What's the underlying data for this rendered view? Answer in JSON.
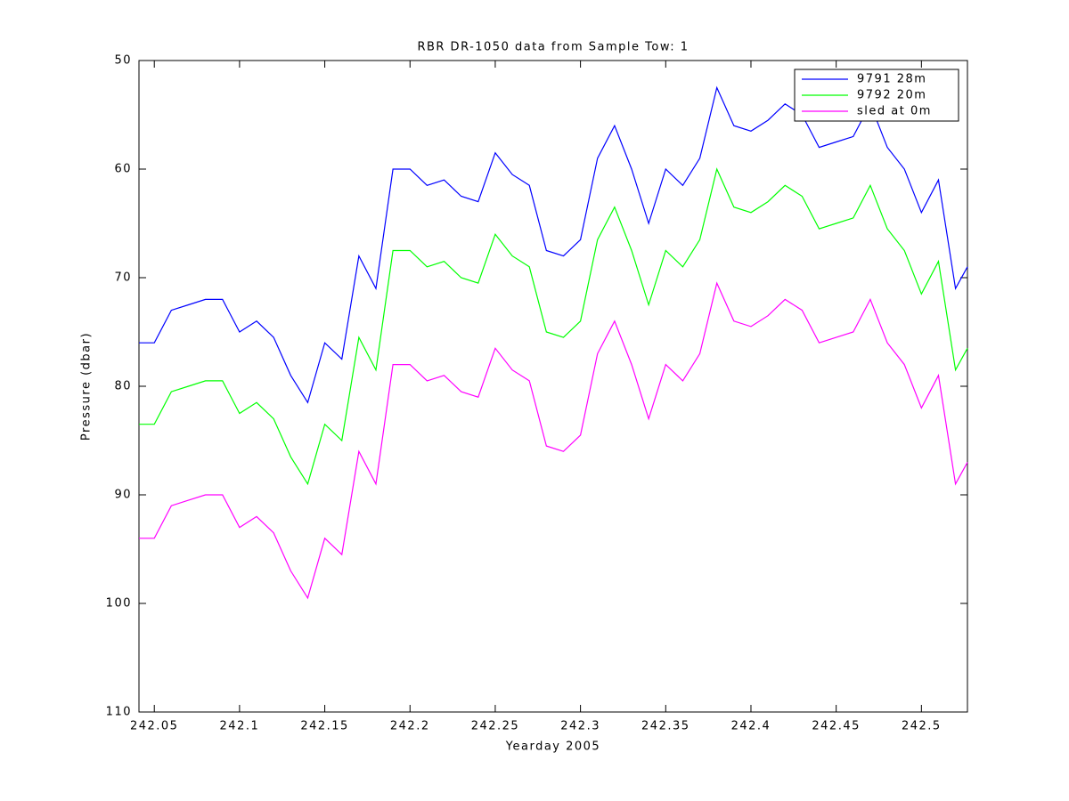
{
  "chart_data": {
    "type": "line",
    "title": "RBR DR-1050 data from Sample Tow: 1",
    "xlabel": "Yearday 2005",
    "ylabel": "Pressure (dbar)",
    "x": [
      242.041,
      242.05,
      242.06,
      242.07,
      242.08,
      242.09,
      242.1,
      242.11,
      242.12,
      242.13,
      242.14,
      242.15,
      242.16,
      242.17,
      242.18,
      242.19,
      242.2,
      242.21,
      242.22,
      242.23,
      242.24,
      242.25,
      242.26,
      242.27,
      242.28,
      242.29,
      242.3,
      242.31,
      242.32,
      242.33,
      242.34,
      242.35,
      242.36,
      242.37,
      242.38,
      242.39,
      242.4,
      242.41,
      242.42,
      242.43,
      242.44,
      242.45,
      242.46,
      242.47,
      242.48,
      242.49,
      242.5,
      242.51,
      242.52,
      242.527
    ],
    "series": [
      {
        "name": "9791 28m",
        "color": "#0000ff",
        "values": [
          76,
          76,
          73,
          72.5,
          72,
          72,
          75,
          74,
          75.5,
          79,
          81.5,
          76,
          77.5,
          68,
          71,
          60,
          60,
          61.5,
          61,
          62.5,
          63,
          58.5,
          60.5,
          61.5,
          67.5,
          68,
          66.5,
          59,
          56,
          60,
          65,
          60,
          61.5,
          59,
          52.5,
          56,
          56.5,
          55.5,
          54,
          55,
          58,
          57.5,
          57,
          54,
          58,
          60,
          64,
          61,
          71,
          69
        ]
      },
      {
        "name": "9792 20m",
        "color": "#00ff00",
        "values": [
          83.5,
          83.5,
          80.5,
          80,
          79.5,
          79.5,
          82.5,
          81.5,
          83,
          86.5,
          89,
          83.5,
          85,
          75.5,
          78.5,
          67.5,
          67.5,
          69,
          68.5,
          70,
          70.5,
          66,
          68,
          69,
          75,
          75.5,
          74,
          66.5,
          63.5,
          67.5,
          72.5,
          67.5,
          69,
          66.5,
          60,
          63.5,
          64,
          63,
          61.5,
          62.5,
          65.5,
          65,
          64.5,
          61.5,
          65.5,
          67.5,
          71.5,
          68.5,
          78.5,
          76.5
        ]
      },
      {
        "name": "sled at 0m",
        "color": "#ff00ff",
        "values": [
          94,
          94,
          91,
          90.5,
          90,
          90,
          93,
          92,
          93.5,
          97,
          99.5,
          94,
          95.5,
          86,
          89,
          78,
          78,
          79.5,
          79,
          80.5,
          81,
          76.5,
          78.5,
          79.5,
          85.5,
          86,
          84.5,
          77,
          74,
          78,
          83,
          78,
          79.5,
          77,
          70.5,
          74,
          74.5,
          73.5,
          72,
          73,
          76,
          75.5,
          75,
          72,
          76,
          78,
          82,
          79,
          89,
          87
        ]
      }
    ],
    "xlim": [
      242.041,
      242.527
    ],
    "xticks": [
      242.05,
      242.1,
      242.15,
      242.2,
      242.25,
      242.3,
      242.35,
      242.4,
      242.45,
      242.5
    ],
    "ylim": [
      50,
      110
    ],
    "yticks": [
      50,
      60,
      70,
      80,
      90,
      100,
      110
    ],
    "y_reversed": true,
    "legend": "upper right"
  }
}
